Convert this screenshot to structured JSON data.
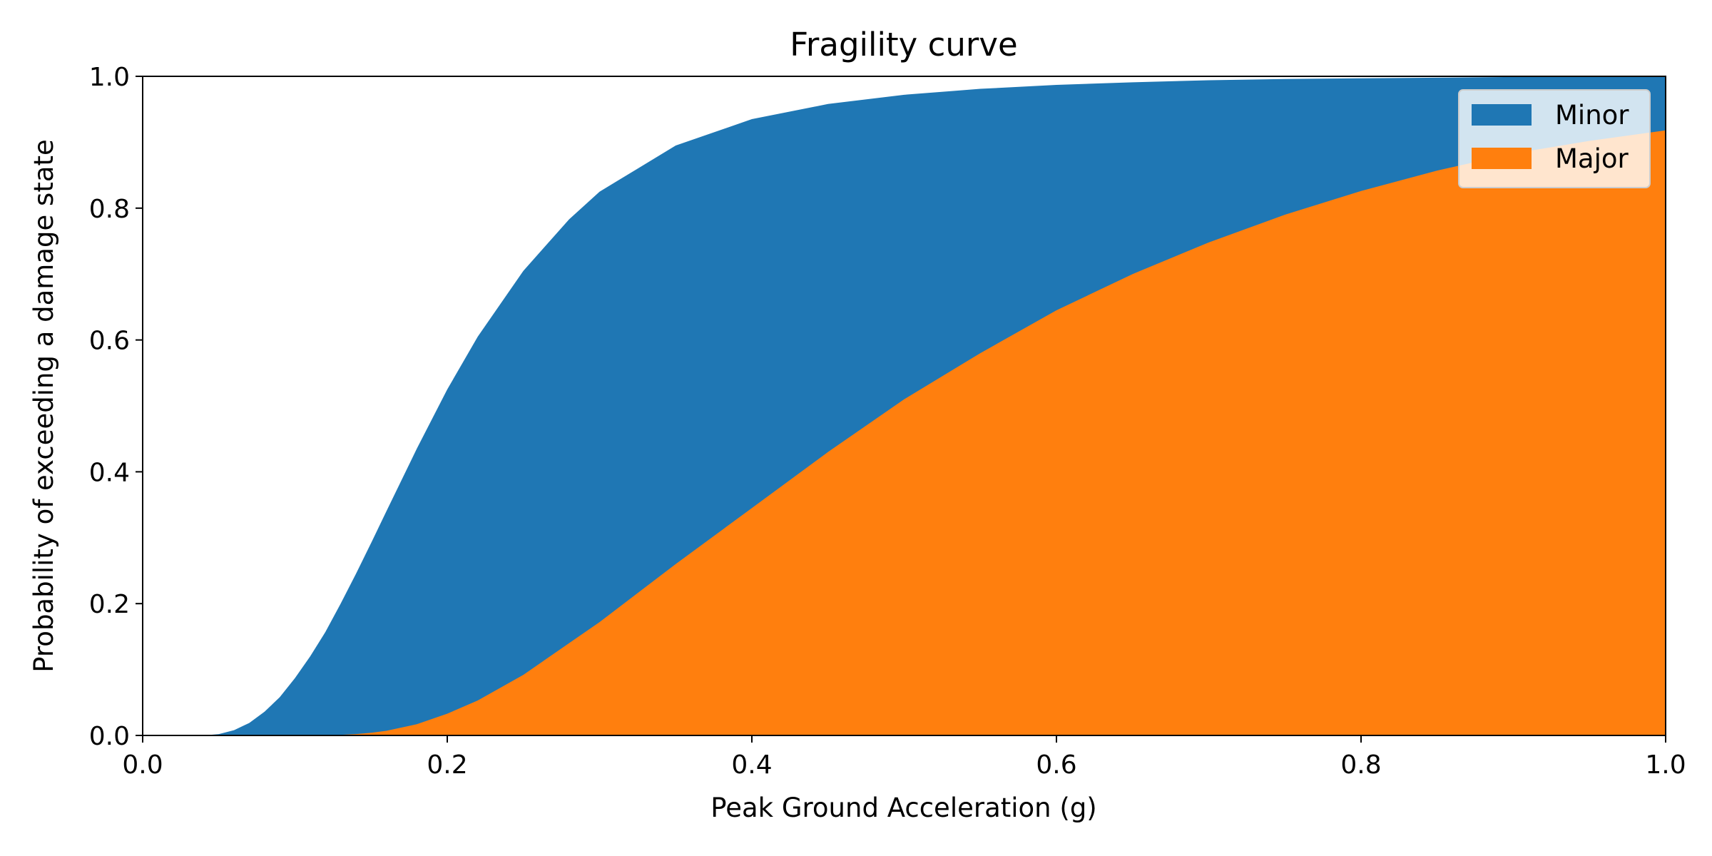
{
  "chart_data": {
    "type": "area",
    "title": "Fragility curve",
    "xlabel": "Peak Ground Acceleration (g)",
    "ylabel": "Probability of exceeding a damage state",
    "xlim": [
      0.0,
      1.0
    ],
    "ylim": [
      0.0,
      1.0
    ],
    "xticks": [
      "0.0",
      "0.2",
      "0.4",
      "0.6",
      "0.8",
      "1.0"
    ],
    "yticks": [
      "0.0",
      "0.2",
      "0.4",
      "0.6",
      "0.8",
      "1.0"
    ],
    "grid": false,
    "legend_position": "top-right",
    "x": [
      0.0,
      0.04,
      0.05,
      0.06,
      0.07,
      0.08,
      0.09,
      0.1,
      0.11,
      0.12,
      0.13,
      0.14,
      0.15,
      0.16,
      0.18,
      0.2,
      0.22,
      0.25,
      0.28,
      0.3,
      0.35,
      0.4,
      0.45,
      0.5,
      0.55,
      0.6,
      0.65,
      0.7,
      0.75,
      0.8,
      0.85,
      0.9,
      0.95,
      1.0
    ],
    "series": [
      {
        "name": "Minor",
        "color": "#1f77b4",
        "values": [
          0.0,
          0.0,
          0.002,
          0.008,
          0.019,
          0.036,
          0.058,
          0.087,
          0.12,
          0.157,
          0.2,
          0.245,
          0.292,
          0.34,
          0.435,
          0.525,
          0.605,
          0.705,
          0.783,
          0.825,
          0.895,
          0.935,
          0.958,
          0.972,
          0.981,
          0.987,
          0.991,
          0.994,
          0.996,
          0.997,
          0.998,
          0.999,
          0.999,
          1.0
        ]
      },
      {
        "name": "Major",
        "color": "#ff7f0e",
        "values": [
          0.0,
          0.0,
          0.0,
          0.0,
          0.0,
          0.0,
          0.0,
          0.0,
          0.0,
          0.0,
          0.001,
          0.002,
          0.004,
          0.007,
          0.017,
          0.033,
          0.053,
          0.092,
          0.14,
          0.172,
          0.26,
          0.345,
          0.43,
          0.51,
          0.58,
          0.645,
          0.7,
          0.748,
          0.79,
          0.826,
          0.857,
          0.883,
          0.902,
          0.918
        ]
      }
    ]
  }
}
